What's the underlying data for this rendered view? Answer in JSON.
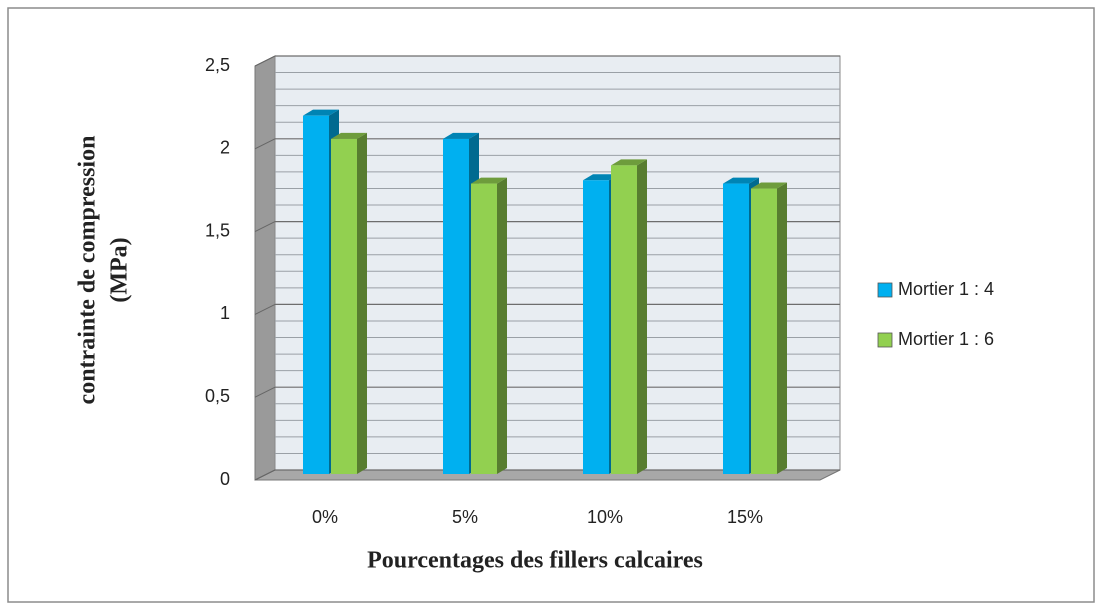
{
  "chart_data": {
    "type": "bar3d",
    "x_label": "Pourcentages des fillers calcaires",
    "y_label": [
      "contrainte de compression",
      "(MPa)"
    ],
    "categories": [
      "0%",
      "5%",
      "10%",
      "15%"
    ],
    "series": [
      {
        "name": "Mortier 1 : 4",
        "color": "#00b0f0",
        "values": [
          2.2,
          2.06,
          1.81,
          1.79
        ]
      },
      {
        "name": "Mortier 1 : 6",
        "color": "#92d050",
        "values": [
          2.06,
          1.79,
          1.9,
          1.76
        ]
      }
    ],
    "ylim": [
      0,
      2.5
    ],
    "yticks": [
      0,
      {
        "value": 0.5,
        "label": "0,5"
      },
      1,
      {
        "value": 1.5,
        "label": "1,5"
      },
      2,
      {
        "value": 2.5,
        "label": "2,5"
      }
    ],
    "grid": true,
    "legend": "right"
  }
}
